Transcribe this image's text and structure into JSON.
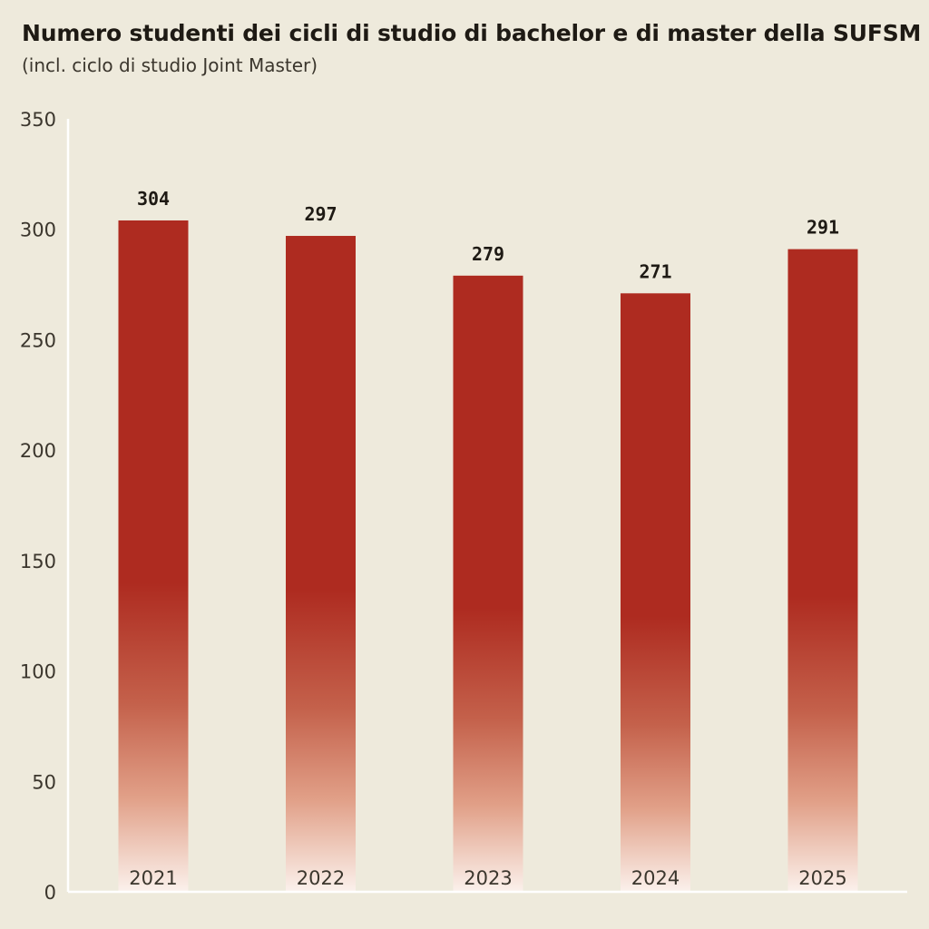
{
  "chart_data": {
    "type": "bar",
    "title": "Numero studenti dei cicli di studio di bachelor e di master della SUFSM",
    "subtitle": "(incl. ciclo di studio Joint Master)",
    "categories": [
      "2021",
      "2022",
      "2023",
      "2024",
      "2025"
    ],
    "values": [
      304,
      297,
      279,
      271,
      291
    ],
    "value_labels": [
      "304",
      "297",
      "279",
      "271",
      "291"
    ],
    "y_ticks": [
      "0",
      "50",
      "100",
      "150",
      "200",
      "250",
      "300",
      "350"
    ],
    "ylim": [
      0,
      350
    ],
    "xlabel": "",
    "ylabel": "",
    "grid": false,
    "legend": "none",
    "colors": {
      "bar": "#ae2b20",
      "bar_fade": "#fbeee8",
      "background": "#eeeadc",
      "axis": "#ffffff",
      "text": "#1e1a14"
    }
  }
}
